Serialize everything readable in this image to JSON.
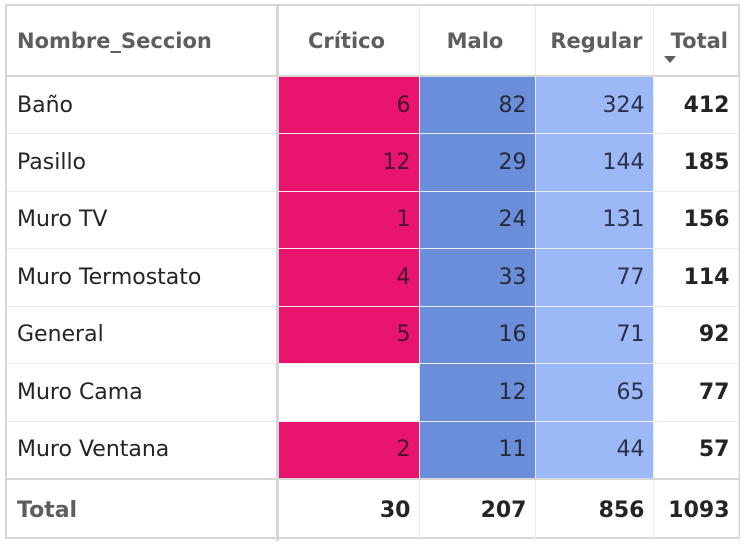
{
  "columns": {
    "name": "Nombre_Seccion",
    "critico": "Crítico",
    "malo": "Malo",
    "regular": "Regular",
    "total": "Total"
  },
  "sort": {
    "column": "Total",
    "direction": "descending"
  },
  "colors": {
    "critico": "#e8146e",
    "malo": "#6b8edb",
    "regular": "#9db8f7"
  },
  "rows": [
    {
      "name": "Baño",
      "critico": "6",
      "malo": "82",
      "regular": "324",
      "total": "412"
    },
    {
      "name": "Pasillo",
      "critico": "12",
      "malo": "29",
      "regular": "144",
      "total": "185"
    },
    {
      "name": "Muro TV",
      "critico": "1",
      "malo": "24",
      "regular": "131",
      "total": "156"
    },
    {
      "name": "Muro Termostato",
      "critico": "4",
      "malo": "33",
      "regular": "77",
      "total": "114"
    },
    {
      "name": "General",
      "critico": "5",
      "malo": "16",
      "regular": "71",
      "total": "92"
    },
    {
      "name": "Muro Cama",
      "critico": "",
      "malo": "12",
      "regular": "65",
      "total": "77"
    },
    {
      "name": "Muro Ventana",
      "critico": "2",
      "malo": "11",
      "regular": "44",
      "total": "57"
    }
  ],
  "totals": {
    "label": "Total",
    "critico": "30",
    "malo": "207",
    "regular": "856",
    "total": "1093"
  }
}
